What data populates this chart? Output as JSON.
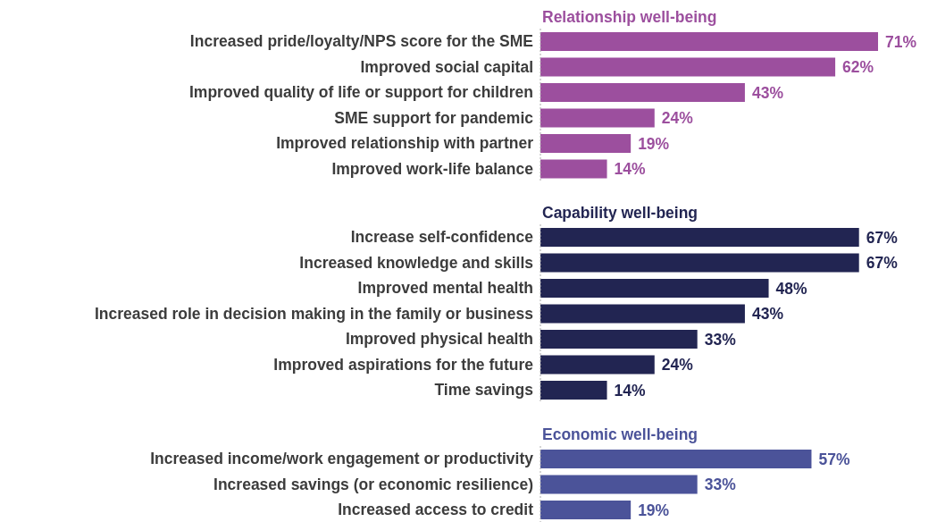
{
  "chart_data": [
    {
      "type": "bar",
      "orientation": "horizontal",
      "title": "Relationship well-being",
      "categories": [
        "Increased pride/loyalty/NPS score for the SME",
        "Improved social capital",
        "Improved quality of life or support for children",
        "SME support for pandemic",
        "Improved relationship with partner",
        "Improved work-life balance"
      ],
      "values": [
        71,
        62,
        43,
        24,
        19,
        14
      ],
      "value_labels": [
        "71%",
        "62%",
        "43%",
        "24%",
        "19%",
        "14%"
      ],
      "color": "#9c4f9e"
    },
    {
      "type": "bar",
      "orientation": "horizontal",
      "title": "Capability well-being",
      "categories": [
        "Increase self-confidence",
        "Increased knowledge and skills",
        "Improved mental health",
        "Increased role in decision making in the family or business",
        "Improved physical health",
        "Improved aspirations for the future",
        "Time savings"
      ],
      "values": [
        67,
        67,
        48,
        43,
        33,
        24,
        14
      ],
      "value_labels": [
        "67%",
        "67%",
        "48%",
        "43%",
        "33%",
        "24%",
        "14%"
      ],
      "color": "#222552"
    },
    {
      "type": "bar",
      "orientation": "horizontal",
      "title": "Economic well-being",
      "categories": [
        "Increased income/work engagement or productivity",
        "Increased savings (or economic resilience)",
        "Increased access to credit"
      ],
      "values": [
        57,
        33,
        19
      ],
      "value_labels": [
        "57%",
        "33%",
        "19%"
      ],
      "color": "#4b5399"
    }
  ]
}
